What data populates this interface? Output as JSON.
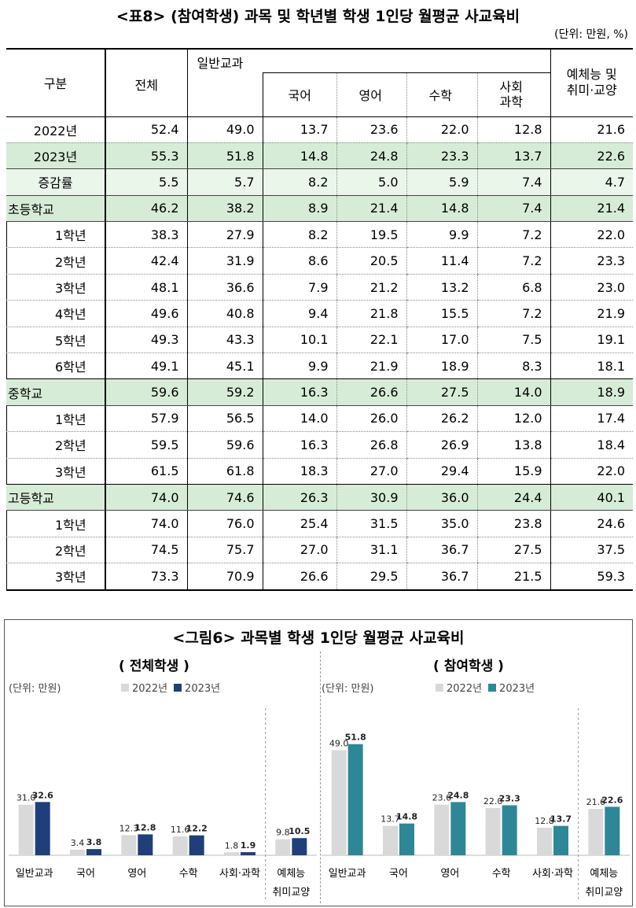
{
  "table": {
    "title": "<표8> (참여학생) 과목 및 학년별 학생 1인당 월평균 사교육비",
    "unit": "(단위: 만원, %)",
    "headers": {
      "category": "구분",
      "total": "전체",
      "general": "일반교과",
      "korean": "국어",
      "english": "영어",
      "math": "수학",
      "social_science": "사회\n과학",
      "arts": "예체능 및\n취미·교양"
    },
    "rows": [
      {
        "label": "2022년",
        "values": [
          "52.4",
          "49.0",
          "13.7",
          "23.6",
          "22.0",
          "12.8",
          "21.6"
        ]
      },
      {
        "label": "2023년",
        "values": [
          "55.3",
          "51.8",
          "14.8",
          "24.8",
          "23.3",
          "13.7",
          "22.6"
        ]
      },
      {
        "label": "증감률",
        "values": [
          "5.5",
          "5.7",
          "8.2",
          "5.0",
          "5.9",
          "7.4",
          "4.7"
        ]
      },
      {
        "label": "초등학교",
        "values": [
          "46.2",
          "38.2",
          "8.9",
          "21.4",
          "14.8",
          "7.4",
          "21.4"
        ]
      },
      {
        "label": "1학년",
        "values": [
          "38.3",
          "27.9",
          "8.2",
          "19.5",
          "9.9",
          "7.2",
          "22.0"
        ]
      },
      {
        "label": "2학년",
        "values": [
          "42.4",
          "31.9",
          "8.6",
          "20.5",
          "11.4",
          "7.2",
          "23.3"
        ]
      },
      {
        "label": "3학년",
        "values": [
          "48.1",
          "36.6",
          "7.9",
          "21.2",
          "13.2",
          "6.8",
          "23.0"
        ]
      },
      {
        "label": "4학년",
        "values": [
          "49.6",
          "40.8",
          "9.4",
          "21.8",
          "15.5",
          "7.2",
          "21.9"
        ]
      },
      {
        "label": "5학년",
        "values": [
          "49.3",
          "43.3",
          "10.1",
          "22.1",
          "17.0",
          "7.5",
          "19.1"
        ]
      },
      {
        "label": "6학년",
        "values": [
          "49.1",
          "45.1",
          "9.9",
          "21.9",
          "18.9",
          "8.3",
          "18.1"
        ]
      },
      {
        "label": "중학교",
        "values": [
          "59.6",
          "59.2",
          "16.3",
          "26.6",
          "27.5",
          "14.0",
          "18.9"
        ]
      },
      {
        "label": "1학년",
        "values": [
          "57.9",
          "56.5",
          "14.0",
          "26.0",
          "26.2",
          "12.0",
          "17.4"
        ]
      },
      {
        "label": "2학년",
        "values": [
          "59.5",
          "59.6",
          "16.3",
          "26.8",
          "26.9",
          "13.8",
          "18.4"
        ]
      },
      {
        "label": "3학년",
        "values": [
          "61.5",
          "61.8",
          "18.3",
          "27.0",
          "29.4",
          "15.9",
          "22.0"
        ]
      },
      {
        "label": "고등학교",
        "values": [
          "74.0",
          "74.6",
          "26.3",
          "30.9",
          "36.0",
          "24.4",
          "40.1"
        ]
      },
      {
        "label": "1학년",
        "values": [
          "74.0",
          "76.0",
          "25.4",
          "31.5",
          "35.0",
          "23.8",
          "24.6"
        ]
      },
      {
        "label": "2학년",
        "values": [
          "74.5",
          "75.7",
          "27.0",
          "31.1",
          "36.7",
          "27.5",
          "37.5"
        ]
      },
      {
        "label": "3학년",
        "values": [
          "73.3",
          "70.9",
          "26.6",
          "29.5",
          "36.7",
          "21.5",
          "59.3"
        ]
      }
    ]
  },
  "figure": {
    "title": "<그림6> 과목별 학생 1인당 월평균 사교육비"
  },
  "chart_data": [
    {
      "type": "bar",
      "title": "( 전체학생 )",
      "unit": "(단위: 만원)",
      "categories": [
        "일반교과",
        "국어",
        "영어",
        "수학",
        "사회·과학",
        "예체능 취미교양"
      ],
      "series": [
        {
          "name": "2022년",
          "color": "#d9d9d9",
          "values": [
            31.0,
            3.4,
            12.3,
            11.6,
            1.8,
            9.8
          ]
        },
        {
          "name": "2023년",
          "color": "#1f3f7a",
          "values": [
            32.6,
            3.8,
            12.8,
            12.2,
            1.9,
            10.5
          ]
        }
      ]
    },
    {
      "type": "bar",
      "title": "( 참여학생 )",
      "unit": "(단위: 만원)",
      "categories": [
        "일반교과",
        "국어",
        "영어",
        "수학",
        "사회·과학",
        "예체능 취미교양"
      ],
      "series": [
        {
          "name": "2022년",
          "color": "#d9d9d9",
          "values": [
            49.0,
            13.7,
            23.6,
            22.0,
            12.8,
            21.6
          ]
        },
        {
          "name": "2023년",
          "color": "#2e8797",
          "values": [
            51.8,
            14.8,
            24.8,
            23.3,
            13.7,
            22.6
          ]
        }
      ]
    }
  ]
}
